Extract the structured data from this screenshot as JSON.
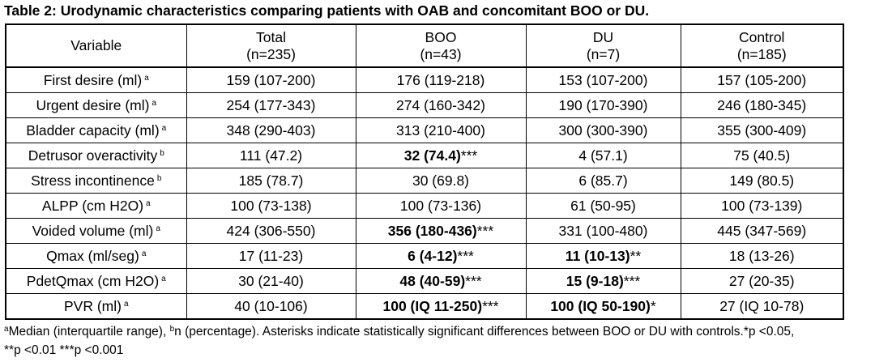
{
  "caption": "Table 2: Urodynamic characteristics comparing patients with OAB and concomitant BOO or DU.",
  "header": {
    "variable": "Variable",
    "columns": [
      {
        "name": "Total",
        "n": "(n=235)"
      },
      {
        "name": "BOO",
        "n": "(n=43)"
      },
      {
        "name": "DU",
        "n": "(n=7)"
      },
      {
        "name": "Control",
        "n": "(n=185)"
      }
    ]
  },
  "rows": [
    {
      "label": "First desire (ml)",
      "sup": "a",
      "total": "159 (107-200)",
      "boo": "176 (119-218)",
      "boo_sig": "",
      "du": "153 (107-200)",
      "du_sig": "",
      "control": "157 (105-200)"
    },
    {
      "label": "Urgent desire (ml)",
      "sup": "a",
      "total": "254 (177-343)",
      "boo": "274 (160-342)",
      "boo_sig": "",
      "du": "190 (170-390)",
      "du_sig": "",
      "control": "246 (180-345)"
    },
    {
      "label": "Bladder capacity (ml)",
      "sup": "a",
      "total": "348 (290-403)",
      "boo": "313 (210-400)",
      "boo_sig": "",
      "du": "300 (300-390)",
      "du_sig": "",
      "control": "355 (300-409)"
    },
    {
      "label": "Detrusor overactivity",
      "sup": "b",
      "total": "111 (47.2)",
      "boo": "32 (74.4)",
      "boo_sig": "***",
      "du": "4 (57.1)",
      "du_sig": "",
      "control": "75 (40.5)"
    },
    {
      "label": "Stress incontinence",
      "sup": "b",
      "total": "185 (78.7)",
      "boo": "30 (69.8)",
      "boo_sig": "",
      "du": "6 (85.7)",
      "du_sig": "",
      "control": "149 (80.5)"
    },
    {
      "label": "ALPP (cm H2O)",
      "sup": "a",
      "total": "100 (73-138)",
      "boo": "100 (73-136)",
      "boo_sig": "",
      "du": "61 (50-95)",
      "du_sig": "",
      "control": "100 (73-139)"
    },
    {
      "label": "Voided volume (ml)",
      "sup": "a",
      "total": "424 (306-550)",
      "boo": "356 (180-436)",
      "boo_sig": "***",
      "du": "331 (100-480)",
      "du_sig": "",
      "control": "445 (347-569)"
    },
    {
      "label": "Qmax (ml/seg)",
      "sup": "a",
      "total": "17 (11-23)",
      "boo": "6 (4-12)",
      "boo_sig": "***",
      "du": "11 (10-13)",
      "du_sig": "**",
      "control": "18 (13-26)"
    },
    {
      "label": "PdetQmax (cm H2O)",
      "sup": "a",
      "total": "30 (21-40)",
      "boo": "48 (40-59)",
      "boo_sig": "***",
      "du": "15 (9-18)",
      "du_sig": "***",
      "control": "27 (20-35)"
    },
    {
      "label": "PVR (ml)",
      "sup": "a",
      "total": "40 (10-106)",
      "boo": "100 (IQ 11-250)",
      "boo_sig": "***",
      "du": "100 (IQ 50-190)",
      "du_sig": "*",
      "control": "27 (IQ 10-78)"
    }
  ],
  "footnote": {
    "sup_a": "a",
    "text_a": "Median (interquartile range), ",
    "sup_b": "b",
    "text_b": "n (percentage). Asterisks indicate statistically significant differences between BOO or DU with controls.*p <0.05, **p <0.01 ***p <0.001"
  }
}
